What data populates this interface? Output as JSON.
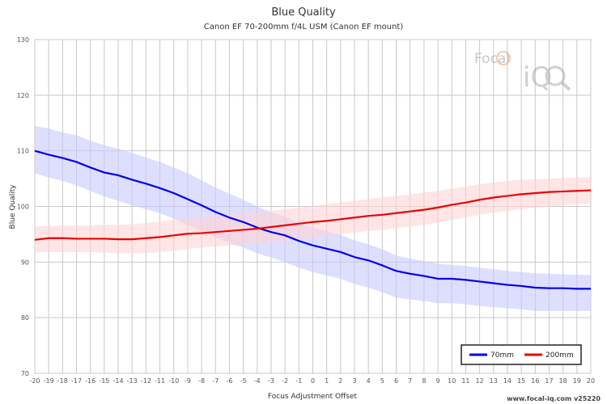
{
  "chart_data": {
    "type": "line",
    "title": "Blue Quality",
    "subtitle": "Canon EF 70-200mm f/4L USM (Canon EF mount)",
    "xlabel": "Focus Adjustment Offset",
    "ylabel": "Blue Quality",
    "xlim": [
      -20,
      20
    ],
    "ylim": [
      70,
      130
    ],
    "yticks": [
      70,
      80,
      90,
      100,
      110,
      120,
      130
    ],
    "grid": true,
    "legend_position": "bottom-right",
    "x": [
      -20,
      -19,
      -18,
      -17,
      -16,
      -15,
      -14,
      -13,
      -12,
      -11,
      -10,
      -9,
      -8,
      -7,
      -6,
      -5,
      -4,
      -3,
      -2,
      -1,
      0,
      1,
      2,
      3,
      4,
      5,
      6,
      7,
      8,
      9,
      10,
      11,
      12,
      13,
      14,
      15,
      16,
      17,
      18,
      19,
      20
    ],
    "series": [
      {
        "name": "70mm",
        "color": "#0000ee",
        "band_color": "#c8c8ff",
        "values": [
          110.0,
          109.3,
          108.7,
          108.0,
          107.0,
          106.1,
          105.6,
          104.8,
          104.1,
          103.3,
          102.4,
          101.3,
          100.2,
          99.0,
          98.0,
          97.2,
          96.2,
          95.4,
          94.8,
          93.8,
          93.0,
          92.4,
          91.8,
          90.9,
          90.3,
          89.4,
          88.4,
          87.9,
          87.5,
          87.0,
          87.0,
          86.8,
          86.5,
          86.2,
          85.9,
          85.7,
          85.4,
          85.3,
          85.3,
          85.2,
          85.2
        ],
        "band_upper": [
          114.5,
          114.0,
          113.3,
          112.8,
          111.8,
          111.0,
          110.4,
          109.6,
          108.8,
          108.0,
          107.0,
          106.0,
          104.7,
          103.4,
          102.3,
          101.2,
          100.0,
          99.0,
          98.2,
          97.1,
          96.2,
          95.6,
          94.9,
          93.9,
          93.2,
          92.3,
          91.2,
          90.6,
          90.2,
          89.7,
          89.5,
          89.3,
          89.0,
          88.7,
          88.4,
          88.2,
          88.0,
          87.9,
          87.8,
          87.7,
          87.7
        ],
        "band_lower": [
          106.0,
          105.2,
          104.6,
          103.8,
          102.8,
          101.8,
          101.0,
          100.2,
          99.5,
          98.8,
          97.8,
          96.7,
          95.6,
          94.5,
          93.4,
          92.6,
          91.6,
          90.8,
          90.0,
          89.0,
          88.2,
          87.6,
          87.0,
          86.1,
          85.4,
          84.6,
          83.6,
          83.3,
          83.0,
          82.6,
          82.6,
          82.4,
          82.1,
          81.9,
          81.7,
          81.5,
          81.2,
          81.2,
          81.2,
          81.2,
          81.2
        ]
      },
      {
        "name": "200mm",
        "color": "#ee0000",
        "band_color": "#ffd4d4",
        "values": [
          94.0,
          94.3,
          94.3,
          94.2,
          94.2,
          94.2,
          94.1,
          94.1,
          94.3,
          94.5,
          94.8,
          95.1,
          95.2,
          95.4,
          95.6,
          95.8,
          96.0,
          96.3,
          96.6,
          96.9,
          97.2,
          97.4,
          97.7,
          98.0,
          98.3,
          98.5,
          98.8,
          99.1,
          99.4,
          99.8,
          100.3,
          100.7,
          101.2,
          101.6,
          101.9,
          102.2,
          102.4,
          102.6,
          102.7,
          102.8,
          102.9
        ],
        "band_upper": [
          96.4,
          96.5,
          96.6,
          96.6,
          96.6,
          96.7,
          96.7,
          96.8,
          97.0,
          97.3,
          97.6,
          97.9,
          98.1,
          98.3,
          98.5,
          98.7,
          98.9,
          99.2,
          99.5,
          99.8,
          100.1,
          100.4,
          100.7,
          101.0,
          101.3,
          101.6,
          101.9,
          102.2,
          102.5,
          102.8,
          103.2,
          103.6,
          104.0,
          104.3,
          104.6,
          104.8,
          104.9,
          105.0,
          105.1,
          105.2,
          105.3
        ],
        "band_lower": [
          91.8,
          91.8,
          91.8,
          91.8,
          91.8,
          91.7,
          91.6,
          91.6,
          91.6,
          91.8,
          92.0,
          92.4,
          92.6,
          92.8,
          93.0,
          93.2,
          93.4,
          93.6,
          93.8,
          94.1,
          94.4,
          94.7,
          95.0,
          95.3,
          95.6,
          95.8,
          96.1,
          96.4,
          96.7,
          97.1,
          97.6,
          98.0,
          98.5,
          98.9,
          99.2,
          99.5,
          99.8,
          100.0,
          100.2,
          100.4,
          100.5
        ]
      }
    ]
  },
  "watermark": {
    "word1": "Focal",
    "word2": "iQ"
  },
  "footer": "www.focal-iq.com  v25220"
}
